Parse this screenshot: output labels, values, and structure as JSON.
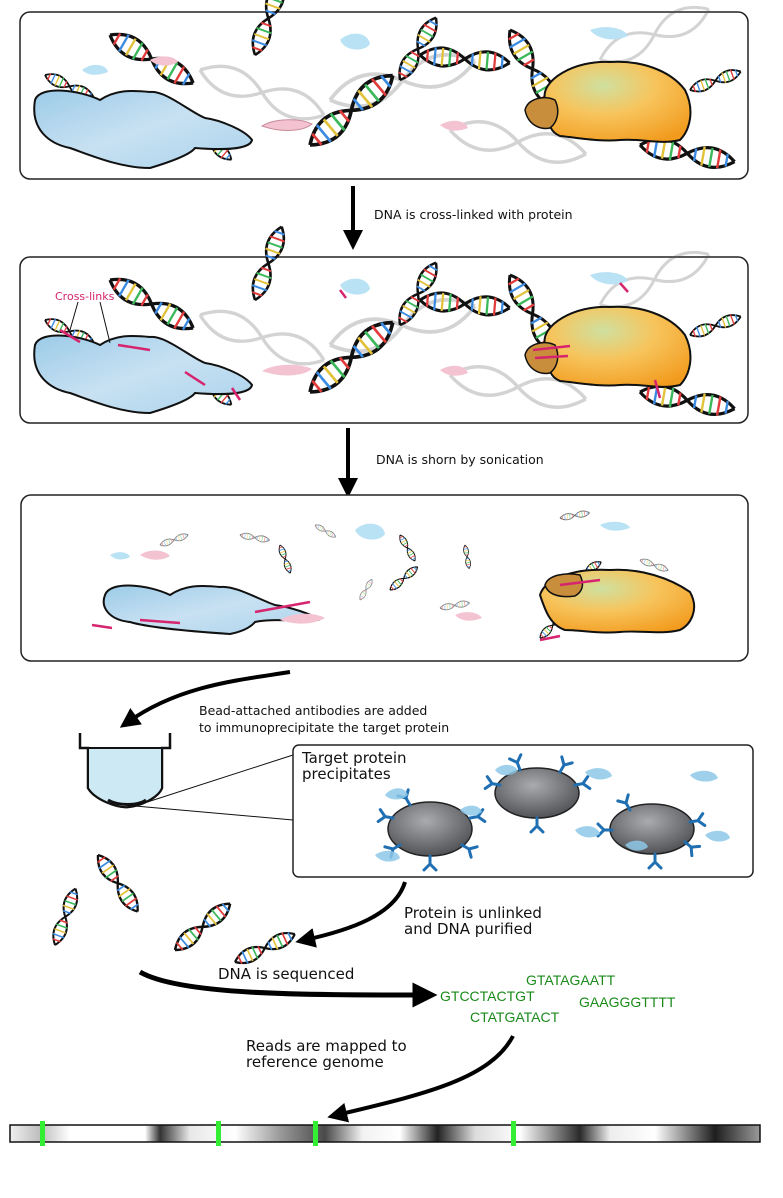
{
  "steps": {
    "crosslink": "DNA is cross-linked with protein",
    "crosslink_label": "Cross-links",
    "sonication": "DNA is shorn by sonication",
    "antibodies_line1": "Bead-attached antibodies are added",
    "antibodies_line2": "to immunoprecipitate the target protein",
    "precipitates_line1": "Target protein",
    "precipitates_line2": "precipitates",
    "unlink_line1": "Protein is unlinked",
    "unlink_line2": "and DNA purified",
    "sequenced": "DNA is sequenced",
    "mapped_line1": "Reads are mapped to",
    "mapped_line2": "reference genome"
  },
  "reads": [
    "GTATAGAATT",
    "GTCCTACTGT",
    "GAAGGGTTTT",
    "CTATGATACT"
  ],
  "colors": {
    "crosslink": "#d6246e",
    "reads": "#1a8a1a",
    "genome_marker": "#33ee33",
    "antibody": "#1f6fb2",
    "target_protein": "#8ec8e8",
    "other_protein": "#f5a93a",
    "panel_border": "#222222"
  },
  "icons": [
    "dna-helix-icon",
    "protein-blob-icon",
    "tube-icon",
    "bead-icon",
    "antibody-icon",
    "arrow-icon"
  ]
}
